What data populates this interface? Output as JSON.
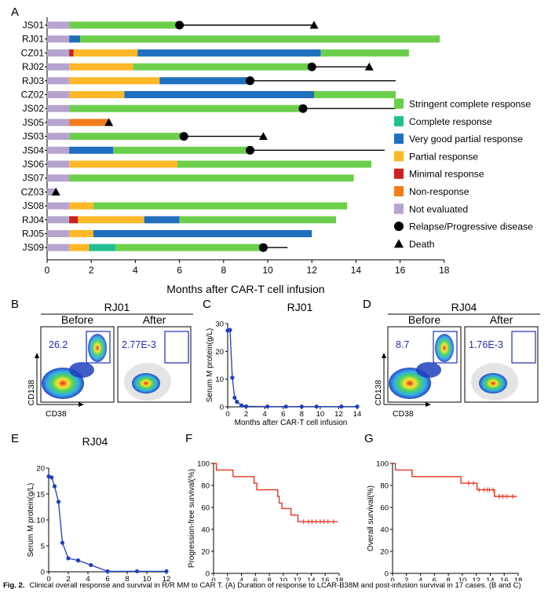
{
  "chart_data": [
    {
      "panel": "A",
      "type": "swimmer",
      "xlabel": "Months after CAR-T cell infusion",
      "xlim": [
        0,
        18
      ],
      "xticks": [
        0,
        2,
        4,
        6,
        8,
        10,
        12,
        14,
        16,
        18
      ],
      "colors": {
        "sCR": "#6ccf4b",
        "CR": "#1fbf8f",
        "VGPR": "#1f6fbf",
        "PR": "#fdb827",
        "MR": "#cc1f1f",
        "NR": "#f47c1a",
        "NE": "#b7a3cf",
        "line": "#000000"
      },
      "legend": [
        {
          "key": "sCR",
          "label": "Stringent complete response"
        },
        {
          "key": "CR",
          "label": "Complete response"
        },
        {
          "key": "VGPR",
          "label": "Very good partial response"
        },
        {
          "key": "PR",
          "label": "Partial response"
        },
        {
          "key": "MR",
          "label": "Minimal response"
        },
        {
          "key": "NR",
          "label": "Non-response"
        },
        {
          "key": "NE",
          "label": "Not evaluated"
        },
        {
          "key": "circle",
          "label": "Relapse/Progressive disease"
        },
        {
          "key": "triangle",
          "label": "Death"
        }
      ],
      "patients": [
        {
          "id": "JS01",
          "segments": [
            [
              "NE",
              0,
              1
            ],
            [
              "sCR",
              1,
              6
            ]
          ],
          "line_end": 12.1,
          "relapse": 6,
          "death": 12.1
        },
        {
          "id": "RJ01",
          "segments": [
            [
              "NE",
              0,
              1
            ],
            [
              "VGPR",
              1,
              1.5
            ],
            [
              "sCR",
              1.5,
              17.8
            ]
          ]
        },
        {
          "id": "CZ01",
          "segments": [
            [
              "NE",
              0,
              1
            ],
            [
              "MR",
              1,
              1.2
            ],
            [
              "PR",
              1.2,
              4.1
            ],
            [
              "VGPR",
              4.1,
              12.4
            ],
            [
              "sCR",
              12.4,
              16.4
            ]
          ]
        },
        {
          "id": "RJ02",
          "segments": [
            [
              "NE",
              0,
              1
            ],
            [
              "PR",
              1,
              3.9
            ],
            [
              "sCR",
              3.9,
              12
            ]
          ],
          "line_end": 14.6,
          "relapse": 12,
          "death": 14.6
        },
        {
          "id": "RJ03",
          "segments": [
            [
              "NE",
              0,
              1
            ],
            [
              "PR",
              1,
              5.1
            ],
            [
              "VGPR",
              5.1,
              9.2
            ]
          ],
          "line_end": 15.8,
          "relapse": 9.2
        },
        {
          "id": "CZ02",
          "segments": [
            [
              "NE",
              0,
              1
            ],
            [
              "PR",
              1,
              3.5
            ],
            [
              "VGPR",
              3.5,
              12.1
            ],
            [
              "sCR",
              12.1,
              15.8
            ]
          ]
        },
        {
          "id": "JS02",
          "segments": [
            [
              "NE",
              0,
              1
            ],
            [
              "sCR",
              1,
              11.6
            ]
          ],
          "line_end": 15.8,
          "relapse": 11.6
        },
        {
          "id": "JS05",
          "segments": [
            [
              "NE",
              0,
              1
            ],
            [
              "NR",
              1,
              2.8
            ]
          ],
          "death": 2.8
        },
        {
          "id": "JS03",
          "segments": [
            [
              "NE",
              0,
              1
            ],
            [
              "sCR",
              1,
              6.2
            ]
          ],
          "line_end": 9.8,
          "relapse": 6.2,
          "death": 9.8
        },
        {
          "id": "JS04",
          "segments": [
            [
              "NE",
              0,
              1
            ],
            [
              "VGPR",
              1,
              3
            ],
            [
              "sCR",
              3,
              9.2
            ]
          ],
          "line_end": 15.3,
          "relapse": 9.2
        },
        {
          "id": "JS06",
          "segments": [
            [
              "NE",
              0,
              1
            ],
            [
              "PR",
              1,
              5.9
            ],
            [
              "sCR",
              5.9,
              14.7
            ]
          ]
        },
        {
          "id": "JS07",
          "segments": [
            [
              "NE",
              0,
              1
            ],
            [
              "sCR",
              1,
              13.9
            ]
          ]
        },
        {
          "id": "CZ03",
          "segments": [
            [
              "NE",
              0,
              0.4
            ]
          ],
          "death": 0.4
        },
        {
          "id": "JS08",
          "segments": [
            [
              "NE",
              0,
              1
            ],
            [
              "PR",
              1,
              2.1
            ],
            [
              "sCR",
              2.1,
              13.6
            ]
          ]
        },
        {
          "id": "RJ04",
          "segments": [
            [
              "NE",
              0,
              1
            ],
            [
              "MR",
              1,
              1.4
            ],
            [
              "PR",
              1.4,
              4.4
            ],
            [
              "VGPR",
              4.4,
              6
            ],
            [
              "sCR",
              6,
              13.1
            ]
          ]
        },
        {
          "id": "RJ05",
          "segments": [
            [
              "NE",
              0,
              1
            ],
            [
              "PR",
              1,
              2.1
            ],
            [
              "VGPR",
              2.1,
              12
            ]
          ]
        },
        {
          "id": "JS09",
          "segments": [
            [
              "NE",
              0,
              1
            ],
            [
              "PR",
              1,
              1.9
            ],
            [
              "CR",
              1.9,
              3.1
            ],
            [
              "sCR",
              3.1,
              9.8
            ]
          ],
          "line_end": 10.9,
          "relapse": 9.8
        }
      ]
    },
    {
      "panel": "B",
      "type": "flow-cytometry",
      "title": "RJ01",
      "subpanels": [
        {
          "label": "Before",
          "value": "26.2"
        },
        {
          "label": "After",
          "value": "2.77E-3"
        }
      ],
      "xlabel": "CD38",
      "ylabel": "CD138"
    },
    {
      "panel": "C",
      "type": "line",
      "title": "RJ01",
      "xlabel": "Months after CAR-T cell infusion",
      "ylabel": "Serum M protein(g/L)",
      "xlim": [
        0,
        14
      ],
      "ylim": [
        0,
        30
      ],
      "xticks": [
        0,
        2,
        4,
        6,
        8,
        10,
        12,
        14
      ],
      "yticks": [
        0,
        10,
        20,
        30
      ],
      "x": [
        0,
        0.25,
        0.5,
        0.75,
        1.0,
        1.5,
        2.0,
        4.3,
        6.3,
        8.0,
        9.6,
        12.3,
        14.0
      ],
      "y": [
        27.5,
        27.7,
        10.5,
        3.3,
        1.8,
        0.5,
        0.2,
        0.1,
        0.1,
        0.1,
        0.1,
        0.1,
        0.1
      ],
      "color": "#1f3fbf"
    },
    {
      "panel": "D",
      "type": "flow-cytometry",
      "title": "RJ04",
      "subpanels": [
        {
          "label": "Before",
          "value": "8.7"
        },
        {
          "label": "After",
          "value": "1.76E-3"
        }
      ],
      "xlabel": "CD38",
      "ylabel": "CD138"
    },
    {
      "panel": "E",
      "type": "line",
      "title": "RJ04",
      "xlabel": "Months after CAR-T cell infusion",
      "ylabel": "Serum M protein(g/L)",
      "xlim": [
        0,
        12
      ],
      "ylim": [
        0,
        20
      ],
      "xticks": [
        0,
        2,
        4,
        6,
        8,
        10,
        12
      ],
      "yticks": [
        0,
        5,
        10,
        15,
        20
      ],
      "x": [
        0,
        0.3,
        0.6,
        1.0,
        1.4,
        2.0,
        3.0,
        4.3,
        6.0,
        9.0,
        12.0
      ],
      "y": [
        18.4,
        18.2,
        16.5,
        13.5,
        5.6,
        2.6,
        2.2,
        1.3,
        0.1,
        0.1,
        0.1
      ],
      "color": "#1f3fbf"
    },
    {
      "panel": "F",
      "type": "survival",
      "ylabel": "Progression-free survival(%)",
      "xlabel": "Months after CAR-T cell infusion",
      "xlim": [
        0,
        18
      ],
      "ylim": [
        0,
        100
      ],
      "xticks": [
        0,
        2,
        4,
        6,
        8,
        10,
        12,
        14,
        16,
        18
      ],
      "yticks": [
        0,
        20,
        40,
        60,
        80,
        100
      ],
      "steps": [
        [
          0,
          100
        ],
        [
          0.4,
          94
        ],
        [
          2.8,
          88
        ],
        [
          5.8,
          82
        ],
        [
          6.2,
          76
        ],
        [
          9.2,
          70
        ],
        [
          9.4,
          64
        ],
        [
          9.8,
          59
        ],
        [
          11.1,
          53
        ],
        [
          12.1,
          47
        ],
        [
          17.8,
          47
        ]
      ],
      "censor_x": [
        12.9,
        13.6,
        14.1,
        14.7,
        15.3,
        15.8,
        16.4,
        17.2
      ],
      "color": "#e8321e"
    },
    {
      "panel": "G",
      "type": "survival",
      "ylabel": "Overall survival(%)",
      "xlabel": "Months after CAR-T cell infusion",
      "xlim": [
        0,
        18
      ],
      "ylim": [
        0,
        100
      ],
      "xticks": [
        0,
        2,
        4,
        6,
        8,
        10,
        12,
        14,
        16,
        18
      ],
      "yticks": [
        0,
        20,
        40,
        60,
        80,
        100
      ],
      "steps": [
        [
          0,
          100
        ],
        [
          0.4,
          94
        ],
        [
          2.8,
          88
        ],
        [
          9.8,
          82
        ],
        [
          12.1,
          76
        ],
        [
          14.6,
          70
        ],
        [
          17.8,
          70
        ]
      ],
      "censor_x": [
        10.9,
        11.6,
        12.4,
        13.1,
        13.6,
        13.9,
        14.4,
        15.3,
        15.8,
        16.4,
        17.2
      ],
      "color": "#e8321e"
    }
  ],
  "caption": {
    "label": "Fig. 2.",
    "text": "Clinical overall response and survival in R/R MM to CAR T. (A) Duration of response to LCAR-B38M and post-infusion survival in 17 cases. (B and C)"
  }
}
